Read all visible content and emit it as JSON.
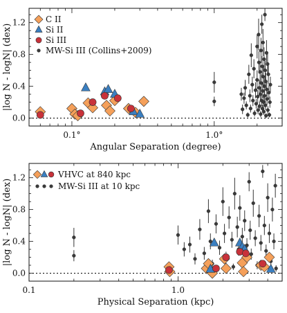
{
  "chart_data": [
    {
      "type": "scatter",
      "xscale": "log",
      "xlim": [
        0.05,
        3.0
      ],
      "ylim": [
        -0.1,
        1.38
      ],
      "xticks": [
        0.1,
        1.0
      ],
      "xtick_labels": [
        "0.1°",
        "1.0°"
      ],
      "yticks": [
        0.0,
        0.4,
        0.8,
        1.2
      ],
      "ytick_labels": [
        "0.0",
        "0.4",
        "0.8",
        "1.2"
      ],
      "xlabel": "Angular Separation (degree)",
      "ylabel": "|log N - logN| (dex)",
      "reference_line_y": 0,
      "grid": false,
      "legend_position": "top-left",
      "legend": [
        "C II",
        "Si II",
        "Si III",
        "MW-Si III (Collins+2009)"
      ],
      "series": [
        {
          "name": "MW-Si III (Collins+2009)",
          "marker": "dot",
          "color": "#3a3a3a",
          "points": [
            {
              "x": 1.0,
              "y": 0.45,
              "err": 0.13
            },
            {
              "x": 1.0,
              "y": 0.21,
              "err": 0.06
            },
            {
              "x": 1.55,
              "y": 0.3,
              "err": 0.08
            },
            {
              "x": 1.58,
              "y": 0.11,
              "err": 0.06
            },
            {
              "x": 1.62,
              "y": 0.25,
              "err": 0.07
            },
            {
              "x": 1.65,
              "y": 0.38,
              "err": 0.1
            },
            {
              "x": 1.68,
              "y": 0.16,
              "err": 0.05
            },
            {
              "x": 1.72,
              "y": 0.04,
              "err": 0.03
            },
            {
              "x": 1.75,
              "y": 0.55,
              "err": 0.12
            },
            {
              "x": 1.78,
              "y": 0.28,
              "err": 0.08
            },
            {
              "x": 1.8,
              "y": 0.12,
              "err": 0.05
            },
            {
              "x": 1.82,
              "y": 0.79,
              "err": 0.15
            },
            {
              "x": 1.85,
              "y": 0.42,
              "err": 0.1
            },
            {
              "x": 1.87,
              "y": 0.22,
              "err": 0.07
            },
            {
              "x": 1.9,
              "y": 0.62,
              "err": 0.12
            },
            {
              "x": 1.92,
              "y": 0.06,
              "err": 0.04
            },
            {
              "x": 1.95,
              "y": 0.35,
              "err": 0.1
            },
            {
              "x": 1.97,
              "y": 0.18,
              "err": 0.06
            },
            {
              "x": 2.0,
              "y": 0.9,
              "err": 0.15
            },
            {
              "x": 2.0,
              "y": 0.48,
              "err": 0.12
            },
            {
              "x": 2.02,
              "y": 0.27,
              "err": 0.08
            },
            {
              "x": 2.03,
              "y": 0.1,
              "err": 0.05
            },
            {
              "x": 2.05,
              "y": 1.05,
              "err": 0.2
            },
            {
              "x": 2.06,
              "y": 0.7,
              "err": 0.14
            },
            {
              "x": 2.07,
              "y": 0.38,
              "err": 0.1
            },
            {
              "x": 2.08,
              "y": 0.15,
              "err": 0.06
            },
            {
              "x": 2.1,
              "y": 0.58,
              "err": 0.13
            },
            {
              "x": 2.11,
              "y": 0.3,
              "err": 0.08
            },
            {
              "x": 2.12,
              "y": 0.05,
              "err": 0.04
            },
            {
              "x": 2.13,
              "y": 0.85,
              "err": 0.16
            },
            {
              "x": 2.14,
              "y": 0.44,
              "err": 0.11
            },
            {
              "x": 2.15,
              "y": 0.22,
              "err": 0.07
            },
            {
              "x": 2.16,
              "y": 1.18,
              "err": 0.12
            },
            {
              "x": 2.17,
              "y": 0.65,
              "err": 0.13
            },
            {
              "x": 2.18,
              "y": 0.12,
              "err": 0.05
            },
            {
              "x": 2.19,
              "y": 0.34,
              "err": 0.09
            },
            {
              "x": 2.2,
              "y": 0.95,
              "err": 0.17
            },
            {
              "x": 2.21,
              "y": 0.52,
              "err": 0.12
            },
            {
              "x": 2.22,
              "y": 0.2,
              "err": 0.07
            },
            {
              "x": 2.23,
              "y": 0.08,
              "err": 0.04
            },
            {
              "x": 2.24,
              "y": 0.74,
              "err": 0.15
            },
            {
              "x": 2.25,
              "y": 0.4,
              "err": 0.1
            },
            {
              "x": 2.26,
              "y": 0.28,
              "err": 0.08
            },
            {
              "x": 2.27,
              "y": 1.3,
              "err": 0.08
            },
            {
              "x": 2.28,
              "y": 0.6,
              "err": 0.12
            },
            {
              "x": 2.29,
              "y": 0.16,
              "err": 0.06
            },
            {
              "x": 2.3,
              "y": 0.46,
              "err": 0.11
            },
            {
              "x": 2.31,
              "y": 0.03,
              "err": 0.03
            },
            {
              "x": 2.33,
              "y": 0.82,
              "err": 0.16
            },
            {
              "x": 2.34,
              "y": 0.36,
              "err": 0.09
            },
            {
              "x": 2.35,
              "y": 0.24,
              "err": 0.07
            },
            {
              "x": 2.37,
              "y": 0.68,
              "err": 0.13
            },
            {
              "x": 2.38,
              "y": 0.1,
              "err": 0.05
            },
            {
              "x": 2.4,
              "y": 0.55,
              "err": 0.12
            },
            {
              "x": 2.42,
              "y": 0.32,
              "err": 0.09
            },
            {
              "x": 2.44,
              "y": 0.04,
              "err": 0.03
            },
            {
              "x": 2.46,
              "y": 0.2,
              "err": 0.07
            },
            {
              "x": 2.48,
              "y": 0.42,
              "err": 0.1
            }
          ]
        },
        {
          "name": "C II",
          "marker": "diamond",
          "color": "#f5a05a",
          "points": [
            {
              "x": 0.06,
              "y": 0.08
            },
            {
              "x": 0.1,
              "y": 0.12
            },
            {
              "x": 0.105,
              "y": 0.05
            },
            {
              "x": 0.11,
              "y": 0.03
            },
            {
              "x": 0.13,
              "y": 0.19
            },
            {
              "x": 0.14,
              "y": 0.13
            },
            {
              "x": 0.175,
              "y": 0.16
            },
            {
              "x": 0.185,
              "y": 0.09
            },
            {
              "x": 0.2,
              "y": 0.22
            },
            {
              "x": 0.25,
              "y": 0.12
            },
            {
              "x": 0.28,
              "y": 0.07
            },
            {
              "x": 0.32,
              "y": 0.21
            }
          ]
        },
        {
          "name": "Si II",
          "marker": "triangle",
          "color": "#3a7fc1",
          "points": [
            {
              "x": 0.125,
              "y": 0.38
            },
            {
              "x": 0.17,
              "y": 0.33
            },
            {
              "x": 0.18,
              "y": 0.36
            },
            {
              "x": 0.2,
              "y": 0.3
            },
            {
              "x": 0.27,
              "y": 0.08
            },
            {
              "x": 0.3,
              "y": 0.05
            }
          ]
        },
        {
          "name": "Si III",
          "marker": "circle",
          "color": "#c8323a",
          "points": [
            {
              "x": 0.06,
              "y": 0.04
            },
            {
              "x": 0.115,
              "y": 0.06
            },
            {
              "x": 0.14,
              "y": 0.2
            },
            {
              "x": 0.17,
              "y": 0.28
            },
            {
              "x": 0.21,
              "y": 0.25
            },
            {
              "x": 0.26,
              "y": 0.12
            }
          ]
        }
      ]
    },
    {
      "type": "scatter",
      "xscale": "log",
      "xlim": [
        0.1,
        5.0
      ],
      "ylim": [
        -0.1,
        1.38
      ],
      "xticks": [
        0.1,
        1.0
      ],
      "xtick_labels": [
        "0.1",
        "1.0"
      ],
      "yticks": [
        0.0,
        0.4,
        0.8,
        1.2
      ],
      "ytick_labels": [
        "0.0",
        "0.4",
        "0.8",
        "1.2"
      ],
      "xlabel": "Physical Separation (kpc)",
      "ylabel": "|log N - logN| (dex)",
      "reference_line_y": 0,
      "grid": false,
      "legend_position": "top-left",
      "legend": [
        "VHVC at 840 kpc",
        "MW-Si III at 10 kpc"
      ],
      "series": [
        {
          "name": "MW-Si III at 10 kpc",
          "marker": "dot",
          "color": "#3a3a3a",
          "points": [
            {
              "x": 0.2,
              "y": 0.45,
              "err": 0.12
            },
            {
              "x": 0.2,
              "y": 0.22,
              "err": 0.07
            },
            {
              "x": 1.0,
              "y": 0.48,
              "err": 0.12
            },
            {
              "x": 1.1,
              "y": 0.3,
              "err": 0.09
            },
            {
              "x": 1.2,
              "y": 0.36,
              "err": 0.1
            },
            {
              "x": 1.3,
              "y": 0.18,
              "err": 0.07
            },
            {
              "x": 1.4,
              "y": 0.55,
              "err": 0.13
            },
            {
              "x": 1.5,
              "y": 0.25,
              "err": 0.08
            },
            {
              "x": 1.6,
              "y": 0.78,
              "err": 0.15
            },
            {
              "x": 1.65,
              "y": 0.4,
              "err": 0.1
            },
            {
              "x": 1.7,
              "y": 0.12,
              "err": 0.05
            },
            {
              "x": 1.8,
              "y": 0.62,
              "err": 0.12
            },
            {
              "x": 1.9,
              "y": 0.32,
              "err": 0.09
            },
            {
              "x": 2.0,
              "y": 0.9,
              "err": 0.18
            },
            {
              "x": 2.05,
              "y": 0.5,
              "err": 0.12
            },
            {
              "x": 2.1,
              "y": 0.2,
              "err": 0.07
            },
            {
              "x": 2.2,
              "y": 0.7,
              "err": 0.14
            },
            {
              "x": 2.3,
              "y": 0.42,
              "err": 0.1
            },
            {
              "x": 2.35,
              "y": 0.08,
              "err": 0.04
            },
            {
              "x": 2.4,
              "y": 1.0,
              "err": 0.2
            },
            {
              "x": 2.5,
              "y": 0.58,
              "err": 0.13
            },
            {
              "x": 2.55,
              "y": 0.3,
              "err": 0.08
            },
            {
              "x": 2.6,
              "y": 0.82,
              "err": 0.16
            },
            {
              "x": 2.7,
              "y": 0.46,
              "err": 0.11
            },
            {
              "x": 2.75,
              "y": 0.16,
              "err": 0.06
            },
            {
              "x": 2.8,
              "y": 0.66,
              "err": 0.13
            },
            {
              "x": 2.9,
              "y": 0.35,
              "err": 0.09
            },
            {
              "x": 3.0,
              "y": 1.15,
              "err": 0.12
            },
            {
              "x": 3.05,
              "y": 0.54,
              "err": 0.12
            },
            {
              "x": 3.1,
              "y": 0.24,
              "err": 0.07
            },
            {
              "x": 3.2,
              "y": 0.88,
              "err": 0.17
            },
            {
              "x": 3.3,
              "y": 0.44,
              "err": 0.1
            },
            {
              "x": 3.4,
              "y": 0.1,
              "err": 0.05
            },
            {
              "x": 3.5,
              "y": 0.72,
              "err": 0.14
            },
            {
              "x": 3.6,
              "y": 0.38,
              "err": 0.1
            },
            {
              "x": 3.7,
              "y": 1.28,
              "err": 0.08
            },
            {
              "x": 3.8,
              "y": 0.6,
              "err": 0.12
            },
            {
              "x": 3.9,
              "y": 0.28,
              "err": 0.08
            },
            {
              "x": 4.0,
              "y": 0.95,
              "err": 0.18
            },
            {
              "x": 4.1,
              "y": 0.5,
              "err": 0.12
            },
            {
              "x": 4.2,
              "y": 0.15,
              "err": 0.06
            },
            {
              "x": 4.3,
              "y": 0.8,
              "err": 0.15
            },
            {
              "x": 4.4,
              "y": 0.4,
              "err": 0.1
            },
            {
              "x": 4.5,
              "y": 1.1,
              "err": 0.15
            },
            {
              "x": 4.55,
              "y": 0.06,
              "err": 0.04
            }
          ]
        },
        {
          "name": "VHVC at 840 kpc (C II)",
          "marker": "diamond",
          "color": "#f5a05a",
          "points": [
            {
              "x": 0.87,
              "y": 0.08
            },
            {
              "x": 0.88,
              "y": 0.02
            },
            {
              "x": 1.55,
              "y": 0.06
            },
            {
              "x": 1.6,
              "y": 0.12
            },
            {
              "x": 1.7,
              "y": 0.0
            },
            {
              "x": 2.05,
              "y": 0.18
            },
            {
              "x": 2.1,
              "y": 0.06
            },
            {
              "x": 2.7,
              "y": 0.13
            },
            {
              "x": 2.75,
              "y": 0.02
            },
            {
              "x": 2.9,
              "y": 0.2
            },
            {
              "x": 3.6,
              "y": 0.1
            },
            {
              "x": 3.8,
              "y": 0.08
            },
            {
              "x": 4.1,
              "y": 0.2
            }
          ]
        },
        {
          "name": "VHVC at 840 kpc (Si II)",
          "marker": "triangle",
          "color": "#3a7fc1",
          "points": [
            {
              "x": 1.75,
              "y": 0.38
            },
            {
              "x": 2.6,
              "y": 0.38
            },
            {
              "x": 2.7,
              "y": 0.33
            },
            {
              "x": 2.8,
              "y": 0.3
            },
            {
              "x": 4.2,
              "y": 0.05
            },
            {
              "x": 1.65,
              "y": 0.05
            }
          ]
        },
        {
          "name": "VHVC at 840 kpc (Si III)",
          "marker": "circle",
          "color": "#c8323a",
          "points": [
            {
              "x": 0.87,
              "y": 0.04
            },
            {
              "x": 2.1,
              "y": 0.2
            },
            {
              "x": 2.6,
              "y": 0.27
            },
            {
              "x": 2.85,
              "y": 0.25
            },
            {
              "x": 3.7,
              "y": 0.12
            },
            {
              "x": 1.8,
              "y": 0.06
            }
          ]
        }
      ]
    }
  ]
}
